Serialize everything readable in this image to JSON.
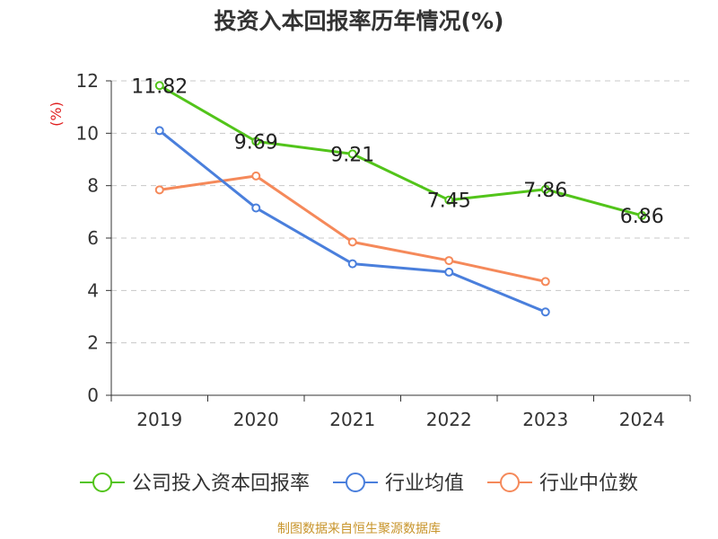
{
  "chart_data": {
    "type": "line",
    "title": "投资入本回报率历年情况(%)",
    "ylabel": "(%)",
    "xlabel": "",
    "categories": [
      "2019",
      "2020",
      "2021",
      "2022",
      "2023",
      "2024"
    ],
    "ylim": [
      0,
      12
    ],
    "yticks": [
      "0",
      "2",
      "4",
      "6",
      "8",
      "10",
      "12"
    ],
    "grid": true,
    "legend_position": "bottom",
    "series": [
      {
        "name": "公司投入资本回报率",
        "color": "#52c41a",
        "values": [
          11.82,
          9.69,
          9.21,
          7.45,
          7.86,
          6.86
        ],
        "labels": [
          "11.82",
          "9.69",
          "9.21",
          "7.45",
          "7.86",
          "6.86"
        ]
      },
      {
        "name": "行业均值",
        "color": "#4a7fdc",
        "values": [
          10.1,
          7.15,
          5.02,
          4.7,
          3.18,
          null
        ]
      },
      {
        "name": "行业中位数",
        "color": "#f5895a",
        "values": [
          7.84,
          8.37,
          5.85,
          5.14,
          4.34,
          null
        ]
      }
    ]
  },
  "ylabel_color": "#e02020",
  "source_note": "制图数据来自恒生聚源数据库"
}
